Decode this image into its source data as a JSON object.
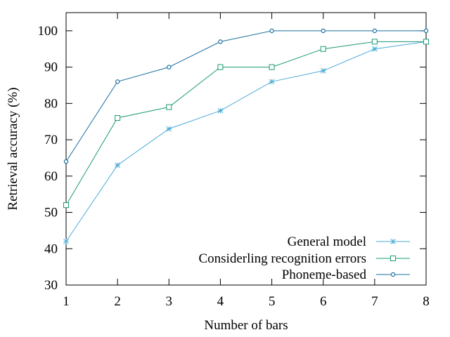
{
  "chart_data": {
    "type": "line",
    "xlabel": "Number of bars",
    "ylabel": "Retrieval accuracy (%)",
    "xlim": [
      1,
      8
    ],
    "ylim": [
      30,
      105
    ],
    "xticks": [
      1,
      2,
      3,
      4,
      5,
      6,
      7,
      8
    ],
    "yticks": [
      30,
      40,
      50,
      60,
      70,
      80,
      90,
      100
    ],
    "grid": false,
    "legend_position": "bottom-right",
    "x": [
      1,
      2,
      3,
      4,
      5,
      6,
      7,
      8
    ],
    "series": [
      {
        "name": "General model",
        "marker": "asterisk",
        "color": "#4bacd6",
        "values": [
          42,
          63,
          73,
          78,
          86,
          89,
          95,
          97
        ]
      },
      {
        "name": "Considerling recognition errors",
        "marker": "square",
        "color": "#1a9a74",
        "values": [
          52,
          76,
          79,
          90,
          90,
          95,
          97,
          97
        ]
      },
      {
        "name": "Phoneme-based",
        "marker": "circle",
        "color": "#1a6f9f",
        "values": [
          64,
          86,
          90,
          97,
          100,
          100,
          100,
          100
        ]
      }
    ]
  }
}
